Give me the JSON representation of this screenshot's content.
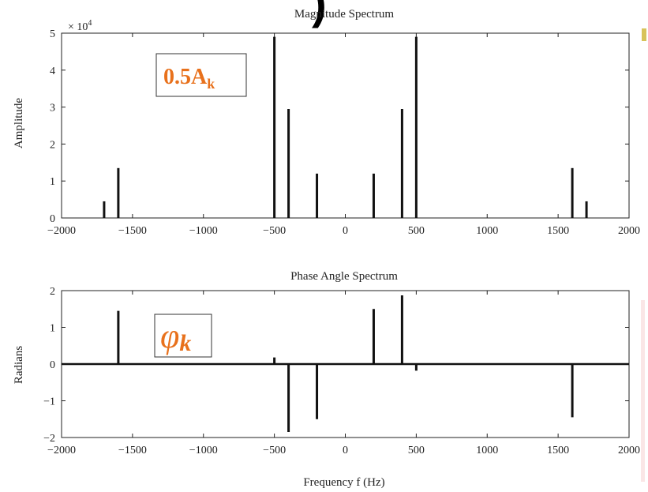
{
  "heading_fragment": ")",
  "callouts": {
    "amplitude_main": "0.5A",
    "amplitude_sub": "k",
    "phase_main": "φ",
    "phase_sub": "k"
  },
  "colors": {
    "accent": "#e8711c",
    "stem": "#111111"
  },
  "chart_data": [
    {
      "type": "bar",
      "title": "Magnitude Spectrum",
      "xlabel": "",
      "ylabel": "Amplitude",
      "exponent_label": "× 10",
      "exponent_power": "4",
      "xlim": [
        -2000,
        2000
      ],
      "ylim": [
        0,
        5
      ],
      "xticks": [
        "−2000",
        "−1500",
        "−1000",
        "−500",
        "0",
        "500",
        "1000",
        "1500",
        "2000"
      ],
      "yticks": [
        "0",
        "1",
        "2",
        "3",
        "4",
        "5"
      ],
      "x": [
        -1700,
        -1600,
        -500,
        -400,
        -200,
        200,
        400,
        500,
        1600,
        1700
      ],
      "values": [
        0.45,
        1.35,
        4.9,
        2.95,
        1.2,
        1.2,
        2.95,
        4.9,
        1.35,
        0.45
      ],
      "grid": false
    },
    {
      "type": "bar",
      "title": "Phase Angle Spectrum",
      "xlabel": "Frequency f (Hz)",
      "ylabel": "Radians",
      "xlim": [
        -2000,
        2000
      ],
      "ylim": [
        -2,
        2
      ],
      "xticks": [
        "−2000",
        "−1500",
        "−1000",
        "−500",
        "0",
        "500",
        "1000",
        "1500",
        "2000"
      ],
      "yticks": [
        "−2",
        "−1",
        "0",
        "1",
        "2"
      ],
      "x": [
        -1600,
        -500,
        -400,
        -200,
        200,
        400,
        500,
        1600
      ],
      "values": [
        1.45,
        0.18,
        -1.85,
        -1.5,
        1.5,
        1.87,
        -0.18,
        -1.45
      ],
      "grid": false
    }
  ]
}
